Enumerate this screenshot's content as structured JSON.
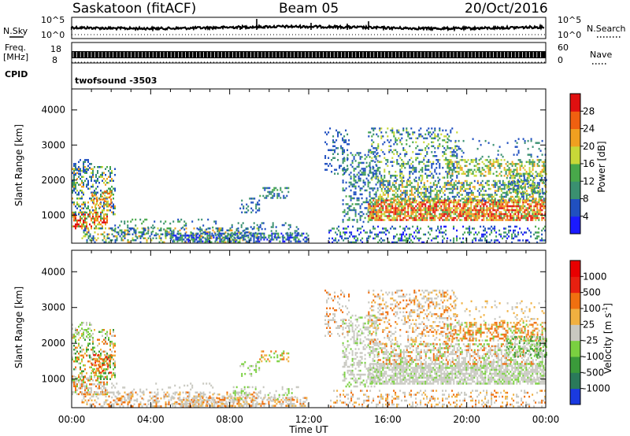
{
  "header": {
    "station": "Saskatoon (fitACF)",
    "beam": "Beam 05",
    "date": "20/Oct/2016"
  },
  "top_panels": {
    "nsky_label": "N.Sky",
    "nsky_ticks": [
      "10^5",
      "10^0"
    ],
    "nsearch_label": "N.Search",
    "freq_label_1": "Freq.",
    "freq_label_2": "[MHz]",
    "freq_ticks": [
      "18",
      "8"
    ],
    "nave_label": "Nave",
    "nave_ticks": [
      "60",
      "0"
    ],
    "cpid_label": "CPID",
    "cpid_value": "twofsound  -3503"
  },
  "chart_data": [
    {
      "type": "heatmap",
      "name": "power",
      "xlabel": "Time UT",
      "ylabel": "Slant Range [km]",
      "xlim": [
        "00:00",
        "00:00"
      ],
      "ylim": [
        200,
        4600
      ],
      "x_ticks": [
        "00:00",
        "04:00",
        "08:00",
        "12:00",
        "16:00",
        "20:00",
        "00:00"
      ],
      "y_ticks": [
        1000,
        2000,
        3000,
        4000
      ],
      "colorbar": {
        "label": "Power [dB]",
        "ticks": [
          "4",
          "8",
          "12",
          "16",
          "20",
          "24",
          "28"
        ],
        "colors": [
          "#1a1aff",
          "#2050c0",
          "#3a9070",
          "#48a84a",
          "#c8d838",
          "#f0a020",
          "#f06010",
          "#e01010"
        ]
      }
    },
    {
      "type": "heatmap",
      "name": "velocity",
      "xlabel": "Time UT",
      "ylabel": "Slant Range [km]",
      "xlim": [
        "00:00",
        "00:00"
      ],
      "ylim": [
        200,
        4600
      ],
      "x_ticks": [
        "00:00",
        "04:00",
        "08:00",
        "12:00",
        "16:00",
        "20:00",
        "00:00"
      ],
      "y_ticks": [
        1000,
        2000,
        3000,
        4000
      ],
      "colorbar": {
        "label": "Velocity [m s-1]",
        "ticks": [
          "1000",
          "500",
          "100",
          "25",
          "-25",
          "-100",
          "-500",
          "-1000"
        ],
        "colors": [
          "#1a3ae0",
          "#2a7a5a",
          "#3a9a3a",
          "#7ad040",
          "#c8c8c0",
          "#f0b040",
          "#f07010",
          "#e82010",
          "#e80000"
        ]
      }
    }
  ],
  "x_axis_title": "Time UT",
  "x_ticks": [
    "00:00",
    "04:00",
    "08:00",
    "12:00",
    "16:00",
    "20:00",
    "00:00"
  ],
  "y_ticks": [
    "1000",
    "2000",
    "3000",
    "4000"
  ],
  "ylabel": "Slant Range [km]",
  "power_bar_label": "Power [dB]",
  "power_bar_ticks": [
    "28",
    "24",
    "20",
    "16",
    "12",
    "8",
    "4"
  ],
  "vel_bar_label_main": "Velocity [m s",
  "vel_bar_label_sup": "-1",
  "vel_bar_label_end": "]",
  "vel_bar_ticks": [
    "1000",
    "500",
    "100",
    "25",
    "-25",
    "-100",
    "-500",
    "-1000"
  ]
}
